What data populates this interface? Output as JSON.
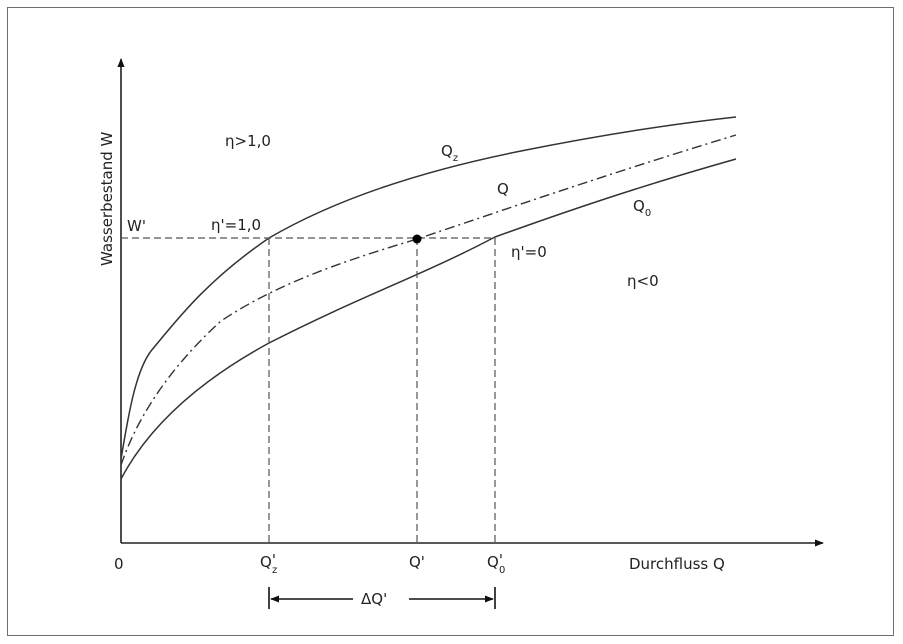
{
  "axes": {
    "y_label": "Wasserbestand W",
    "x_label": "Durchfluss Q",
    "origin": "0"
  },
  "curves": {
    "qz": {
      "base": "Q",
      "sub": "z"
    },
    "q": {
      "base": "Q"
    },
    "q0": {
      "base": "Q",
      "sub": "0"
    }
  },
  "regions": {
    "eta_gt_1": "η>1,0",
    "eta_lt_0": "η<0"
  },
  "markers": {
    "w_prime": "W'",
    "eta_prime_1": "η'=1,0",
    "eta_prime_0": "η'=0"
  },
  "ticks": {
    "qz_prime": {
      "base": "Q",
      "sub": "z",
      "mark": "'"
    },
    "q_prime": "Q'",
    "q0_prime": {
      "base": "Q",
      "sub": "0",
      "mark": "'"
    }
  },
  "delta": {
    "label": "ΔQ'"
  },
  "colors": {
    "line": "#333333",
    "dash": "#555555",
    "frame": "#6f6f6f"
  }
}
